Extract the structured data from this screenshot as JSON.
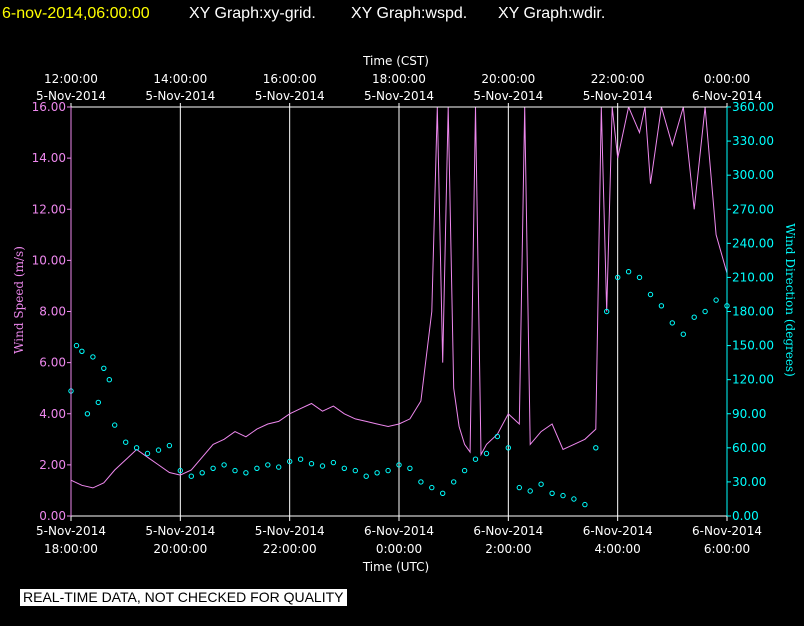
{
  "header": {
    "datetime": "6-nov-2014,06:00:00",
    "titles": [
      "XY Graph:xy-grid.",
      "XY Graph:wspd.",
      "XY Graph:wdir."
    ]
  },
  "disclaimer": "REAL-TIME DATA, NOT CHECKED FOR QUALITY",
  "colors": {
    "background": "#000000",
    "datetime": "#ffff00",
    "grid": "#ffffff",
    "wind_speed": "#ee88ee",
    "wind_direction": "#00ffff"
  },
  "chart_data": {
    "type": "line",
    "x_bottom": {
      "label": "Time (UTC)",
      "range_hours_utc": [
        18,
        30
      ],
      "ticks": [
        {
          "hour": 18,
          "date": "5-Nov-2014",
          "time": "18:00:00"
        },
        {
          "hour": 20,
          "date": "5-Nov-2014",
          "time": "20:00:00"
        },
        {
          "hour": 22,
          "date": "5-Nov-2014",
          "time": "22:00:00"
        },
        {
          "hour": 24,
          "date": "6-Nov-2014",
          "time": "0:00:00"
        },
        {
          "hour": 26,
          "date": "6-Nov-2014",
          "time": "2:00:00"
        },
        {
          "hour": 28,
          "date": "6-Nov-2014",
          "time": "4:00:00"
        },
        {
          "hour": 30,
          "date": "6-Nov-2014",
          "time": "6:00:00"
        }
      ]
    },
    "x_top": {
      "label": "Time (CST)",
      "ticks": [
        {
          "hour": 18,
          "time": "12:00:00",
          "date": "5-Nov-2014"
        },
        {
          "hour": 20,
          "time": "14:00:00",
          "date": "5-Nov-2014"
        },
        {
          "hour": 22,
          "time": "16:00:00",
          "date": "5-Nov-2014"
        },
        {
          "hour": 24,
          "time": "18:00:00",
          "date": "5-Nov-2014"
        },
        {
          "hour": 26,
          "time": "20:00:00",
          "date": "5-Nov-2014"
        },
        {
          "hour": 28,
          "time": "22:00:00",
          "date": "5-Nov-2014"
        },
        {
          "hour": 30,
          "time": "0:00:00",
          "date": "6-Nov-2014"
        }
      ]
    },
    "y_left": {
      "label": "Wind Speed (m/s)",
      "ylim": [
        0,
        16
      ],
      "ticks": [
        "0.00",
        "2.00",
        "4.00",
        "6.00",
        "8.00",
        "10.00",
        "12.00",
        "14.00",
        "16.00"
      ]
    },
    "y_right": {
      "label": "Wind Direction (degrees)",
      "ylim": [
        0,
        360
      ],
      "ticks": [
        "0.00",
        "30.00",
        "60.00",
        "90.00",
        "120.00",
        "150.00",
        "180.00",
        "210.00",
        "240.00",
        "270.00",
        "300.00",
        "330.00",
        "360.00"
      ]
    },
    "grid": "vertical",
    "series": [
      {
        "name": "Wind Speed (m/s)",
        "type": "line",
        "axis": "left",
        "x": [
          18.0,
          18.2,
          18.4,
          18.6,
          18.8,
          19.0,
          19.2,
          19.4,
          19.6,
          19.8,
          20.0,
          20.2,
          20.4,
          20.6,
          20.8,
          21.0,
          21.2,
          21.4,
          21.6,
          21.8,
          22.0,
          22.2,
          22.4,
          22.6,
          22.8,
          23.0,
          23.2,
          23.4,
          23.6,
          23.8,
          24.0,
          24.2,
          24.4,
          24.6,
          24.7,
          24.8,
          24.9,
          25.0,
          25.1,
          25.2,
          25.3,
          25.4,
          25.5,
          25.6,
          25.8,
          26.0,
          26.2,
          26.3,
          26.4,
          26.6,
          26.8,
          27.0,
          27.2,
          27.4,
          27.6,
          27.7,
          27.8,
          27.9,
          28.0,
          28.2,
          28.4,
          28.5,
          28.6,
          28.8,
          29.0,
          29.2,
          29.4,
          29.6,
          29.8,
          30.0
        ],
        "values": [
          1.4,
          1.2,
          1.1,
          1.3,
          1.8,
          2.2,
          2.6,
          2.3,
          2.0,
          1.7,
          1.6,
          1.8,
          2.3,
          2.8,
          3.0,
          3.3,
          3.1,
          3.4,
          3.6,
          3.7,
          4.0,
          4.2,
          4.4,
          4.1,
          4.3,
          4.0,
          3.8,
          3.7,
          3.6,
          3.5,
          3.6,
          3.8,
          4.5,
          8.0,
          16.0,
          6.0,
          16.0,
          5.0,
          3.5,
          2.8,
          2.5,
          16.0,
          2.4,
          2.8,
          3.2,
          4.0,
          3.6,
          16.0,
          2.8,
          3.3,
          3.6,
          2.6,
          2.8,
          3.0,
          3.4,
          16.0,
          8.0,
          16.0,
          14.0,
          16.0,
          15.0,
          16.0,
          13.0,
          16.0,
          14.5,
          16.0,
          12.0,
          16.0,
          11.0,
          9.5
        ]
      },
      {
        "name": "Wind Direction (degrees)",
        "type": "scatter",
        "axis": "right",
        "x": [
          18.0,
          18.1,
          18.2,
          18.3,
          18.4,
          18.5,
          18.6,
          18.7,
          18.8,
          19.0,
          19.2,
          19.4,
          19.6,
          19.8,
          20.0,
          20.2,
          20.4,
          20.6,
          20.8,
          21.0,
          21.2,
          21.4,
          21.6,
          21.8,
          22.0,
          22.2,
          22.4,
          22.6,
          22.8,
          23.0,
          23.2,
          23.4,
          23.6,
          23.8,
          24.0,
          24.2,
          24.4,
          24.6,
          24.8,
          25.0,
          25.2,
          25.4,
          25.6,
          25.8,
          26.0,
          26.2,
          26.4,
          26.6,
          26.8,
          27.0,
          27.2,
          27.4,
          27.6,
          27.8,
          28.0,
          28.2,
          28.4,
          28.6,
          28.8,
          29.0,
          29.2,
          29.4,
          29.6,
          29.8,
          30.0
        ],
        "values": [
          110,
          150,
          145,
          90,
          140,
          100,
          130,
          120,
          80,
          65,
          60,
          55,
          58,
          62,
          40,
          35,
          38,
          42,
          45,
          40,
          38,
          42,
          45,
          43,
          48,
          50,
          46,
          44,
          47,
          42,
          40,
          35,
          38,
          40,
          45,
          42,
          30,
          25,
          20,
          30,
          40,
          50,
          55,
          70,
          60,
          25,
          22,
          28,
          20,
          18,
          15,
          10,
          60,
          180,
          210,
          215,
          210,
          195,
          185,
          170,
          160,
          175,
          180,
          190,
          185
        ]
      }
    ]
  }
}
